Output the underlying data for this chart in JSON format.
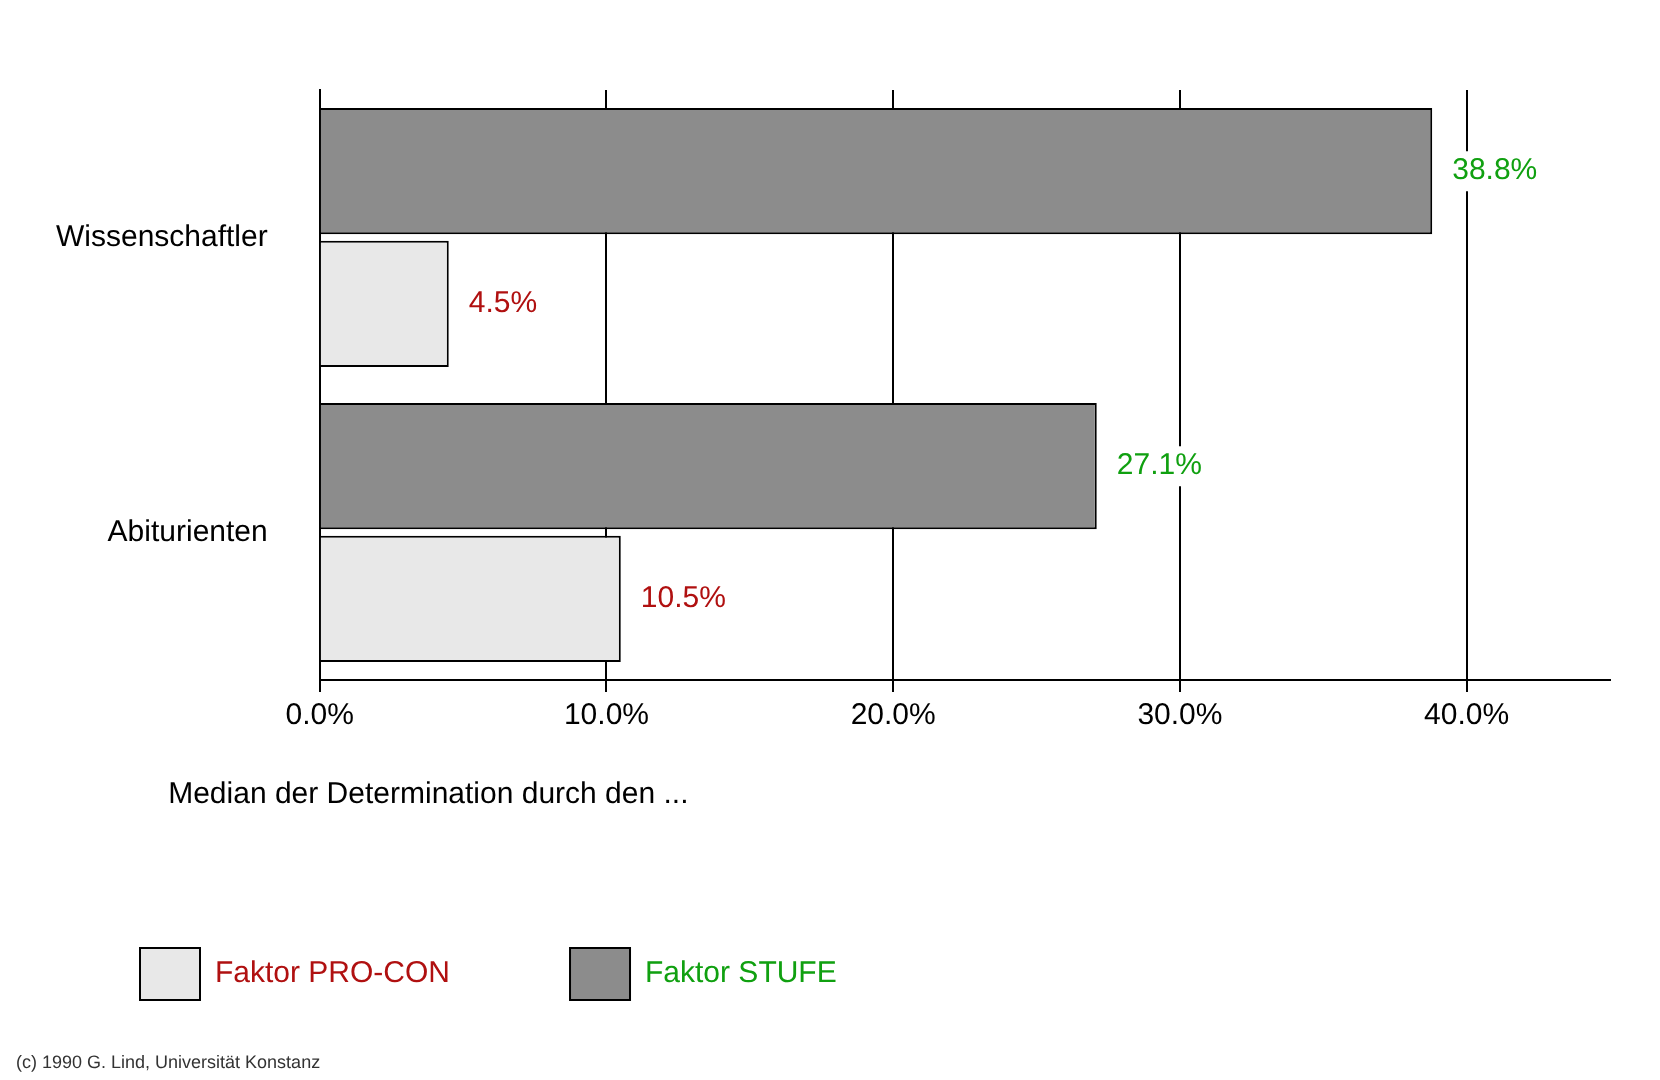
{
  "chart_data": {
    "type": "bar",
    "orientation": "horizontal",
    "categories": [
      "Wissenschaftler",
      "Abiturienten"
    ],
    "series": [
      {
        "name": "Faktor PRO-CON",
        "color": "#e8e8e8",
        "values": [
          4.5,
          10.5
        ],
        "value_labels": [
          "4.5%",
          "10.5%"
        ]
      },
      {
        "name": "Faktor STUFE",
        "color": "#8c8c8c",
        "values": [
          38.8,
          27.1
        ],
        "value_labels": [
          "38.8%",
          "27.1%"
        ]
      }
    ],
    "xlim": [
      0,
      45
    ],
    "xticks": [
      {
        "value": 0,
        "label": "0.0%"
      },
      {
        "value": 10,
        "label": "10.0%"
      },
      {
        "value": 20,
        "label": "20.0%"
      },
      {
        "value": 30,
        "label": "30.0%"
      },
      {
        "value": 40,
        "label": "40.0%"
      }
    ],
    "grid": "x",
    "legend": "bottom",
    "legend_title": "Median der Determination durch den ...",
    "annotations": [
      "(c) 1990 G. Lind, Universität Konstanz"
    ]
  }
}
